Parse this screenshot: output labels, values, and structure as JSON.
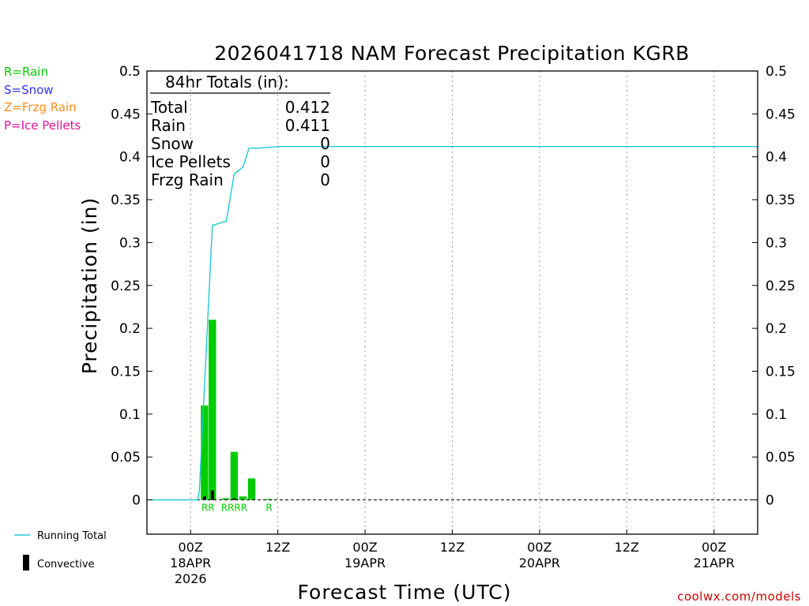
{
  "chart_data": {
    "type": "bar",
    "title": "2026041718 NAM Forecast Precipitation KGRB",
    "ylabel": "Precipitation (in)",
    "xlabel": "Forecast Time (UTC)",
    "ylim": [
      -0.04,
      0.5
    ],
    "y_ticks": [
      "0.5",
      "0.45",
      "0.4",
      "0.35",
      "0.3",
      "0.25",
      "0.2",
      "0.15",
      "0.1",
      "0.05",
      "0"
    ],
    "x_range_hours": [
      -5,
      65
    ],
    "x_ticks": [
      {
        "hour": 0,
        "label": "00Z",
        "sub": "18APR",
        "sub2": "2026"
      },
      {
        "hour": 10,
        "label": "12Z",
        "sub": "",
        "sub2": ""
      },
      {
        "hour": 20,
        "label": "00Z",
        "sub": "19APR",
        "sub2": ""
      },
      {
        "hour": 30,
        "label": "12Z",
        "sub": "",
        "sub2": ""
      },
      {
        "hour": 40,
        "label": "00Z",
        "sub": "20APR",
        "sub2": ""
      },
      {
        "hour": 50,
        "label": "12Z",
        "sub": "",
        "sub2": ""
      },
      {
        "hour": 60,
        "label": "00Z",
        "sub": "21APR",
        "sub2": ""
      }
    ],
    "precip_types": {
      "legend": [
        {
          "text": "R=Rain",
          "color": "#00cc00"
        },
        {
          "text": "S=Snow",
          "color": "#3333ff"
        },
        {
          "text": "Z=Frzg Rain",
          "color": "#ff8c1a"
        },
        {
          "text": "P=Ice Pellets",
          "color": "#e6149b"
        }
      ],
      "markers": [
        {
          "hour": 2,
          "label": "RR"
        },
        {
          "hour": 5,
          "label": "RRRR"
        },
        {
          "hour": 9,
          "label": "R"
        }
      ]
    },
    "totals_box": {
      "header": "84hr Totals (in):",
      "rows": [
        {
          "label": "Total",
          "value": "0.412"
        },
        {
          "label": "Rain",
          "value": "0.411"
        },
        {
          "label": "Snow",
          "value": "0"
        },
        {
          "label": "Ice Pellets",
          "value": "0"
        },
        {
          "label": "Frzg Rain",
          "value": "0"
        }
      ]
    },
    "rain_bars": [
      {
        "hour": 1.6,
        "value": 0.11
      },
      {
        "hour": 2.5,
        "value": 0.21
      },
      {
        "hour": 4.0,
        "value": 0.002
      },
      {
        "hour": 5.0,
        "value": 0.056
      },
      {
        "hour": 6.0,
        "value": 0.004
      },
      {
        "hour": 7.0,
        "value": 0.025
      },
      {
        "hour": 9.0,
        "value": 0.001
      }
    ],
    "convective_bars": [
      {
        "hour": 1.6,
        "value": 0.004
      },
      {
        "hour": 2.5,
        "value": 0.011
      },
      {
        "hour": 5.0,
        "value": 0.002
      }
    ],
    "running_total": {
      "hours": [
        -4.5,
        0.8,
        1.0,
        2.5,
        4.1,
        5.0,
        6.0,
        6.7,
        7.7,
        9.0,
        10.0,
        65.0
      ],
      "values": [
        0,
        0,
        0.01,
        0.32,
        0.325,
        0.38,
        0.388,
        0.41,
        0.41,
        0.411,
        0.412,
        0.412
      ]
    },
    "bottom_legend": [
      {
        "text": "Running Total",
        "kind": "line",
        "color": "#1fc9d6"
      },
      {
        "text": "Convective",
        "kind": "bar",
        "color": "#000000"
      }
    ],
    "credit": "coolwx.com/models"
  }
}
